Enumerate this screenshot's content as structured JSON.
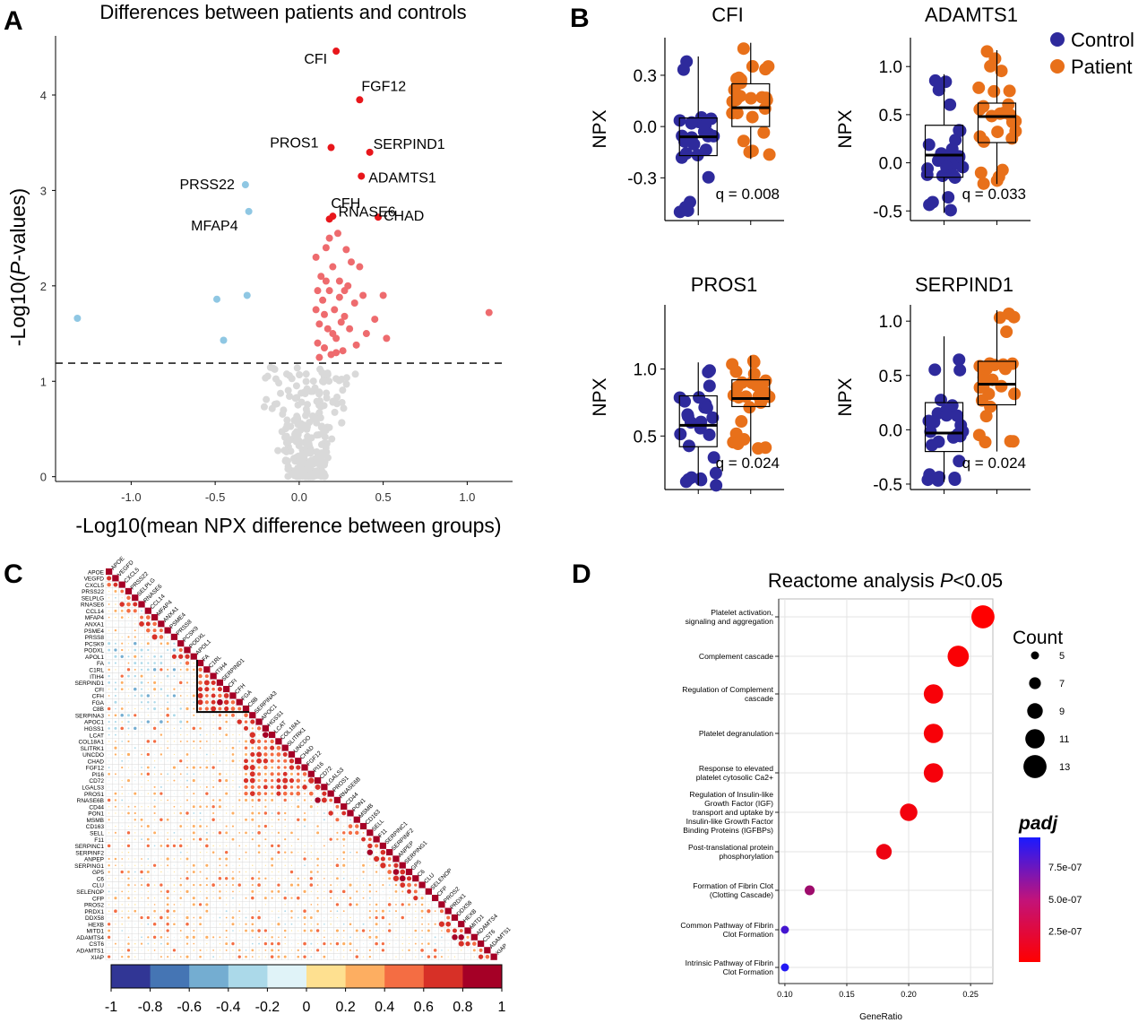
{
  "panels": {
    "a": "A",
    "b": "B",
    "c": "C",
    "d": "D"
  },
  "chart_data": [
    {
      "type": "scatter",
      "panel": "A",
      "title": "Differences between patients and controls",
      "xlabel": "-Log10(mean NPX difference between groups)",
      "ylabel_prefix": "-Log10(",
      "ylabel_italic": "P",
      "ylabel_suffix": "-values)",
      "xlim": [
        -1.45,
        1.27
      ],
      "ylim": [
        -0.05,
        4.62
      ],
      "xticks": [
        "-1.0",
        "-0.5",
        "0.0",
        "0.5",
        "1.0"
      ],
      "xtick_values": [
        -1.0,
        -0.5,
        0.0,
        0.5,
        1.0
      ],
      "yticks": [
        "0",
        "1",
        "2",
        "3",
        "4"
      ],
      "ytick_values": [
        0,
        1,
        2,
        3,
        4
      ],
      "threshold": 1.19,
      "colors": {
        "up": "#e8161b",
        "up_faded": "#ee6b6e",
        "down": "#8fc7e3",
        "ns": "#d9d9d9"
      },
      "labeled_points": [
        {
          "name": "CFI",
          "x": 0.22,
          "y": 4.46,
          "group": "up"
        },
        {
          "name": "FGF12",
          "x": 0.36,
          "y": 3.95,
          "group": "up"
        },
        {
          "name": "PROS1",
          "x": 0.19,
          "y": 3.45,
          "group": "up"
        },
        {
          "name": "SERPIND1",
          "x": 0.42,
          "y": 3.4,
          "group": "up"
        },
        {
          "name": "ADAMTS1",
          "x": 0.37,
          "y": 3.15,
          "group": "up"
        },
        {
          "name": "CFH",
          "x": 0.2,
          "y": 2.73,
          "group": "up"
        },
        {
          "name": "CHAD",
          "x": 0.47,
          "y": 2.72,
          "group": "up"
        },
        {
          "name": "PRSS22",
          "x": -0.32,
          "y": 3.06,
          "group": "down"
        },
        {
          "name": "RNASE6",
          "x": 0.18,
          "y": 2.7,
          "group": "up"
        },
        {
          "name": "MFAP4",
          "x": -0.3,
          "y": 2.78,
          "group": "down"
        }
      ],
      "points": [
        {
          "x": -1.32,
          "y": 1.66,
          "group": "down"
        },
        {
          "x": -0.49,
          "y": 1.86,
          "group": "down"
        },
        {
          "x": -0.45,
          "y": 1.43,
          "group": "down"
        },
        {
          "x": -0.31,
          "y": 1.9,
          "group": "down"
        },
        {
          "x": 1.13,
          "y": 1.72,
          "group": "up_faded"
        },
        {
          "x": 0.52,
          "y": 1.45,
          "group": "up_faded"
        },
        {
          "x": 0.5,
          "y": 1.9,
          "group": "up_faded"
        },
        {
          "x": 0.45,
          "y": 1.65,
          "group": "up_faded"
        },
        {
          "x": 0.38,
          "y": 1.9,
          "group": "up_faded"
        },
        {
          "x": 0.36,
          "y": 2.2,
          "group": "up_faded"
        },
        {
          "x": 0.33,
          "y": 1.82,
          "group": "up_faded"
        },
        {
          "x": 0.31,
          "y": 2.25,
          "group": "up_faded"
        },
        {
          "x": 0.3,
          "y": 1.55,
          "group": "up_faded"
        },
        {
          "x": 0.28,
          "y": 2.38,
          "group": "up_faded"
        },
        {
          "x": 0.27,
          "y": 1.95,
          "group": "up_faded"
        },
        {
          "x": 0.26,
          "y": 1.32,
          "group": "up_faded"
        },
        {
          "x": 0.25,
          "y": 1.62,
          "group": "up_faded"
        },
        {
          "x": 0.24,
          "y": 2.05,
          "group": "up_faded"
        },
        {
          "x": 0.23,
          "y": 2.55,
          "group": "up_faded"
        },
        {
          "x": 0.22,
          "y": 1.45,
          "group": "up_faded"
        },
        {
          "x": 0.21,
          "y": 1.75,
          "group": "up_faded"
        },
        {
          "x": 0.2,
          "y": 2.2,
          "group": "up_faded"
        },
        {
          "x": 0.19,
          "y": 1.28,
          "group": "up_faded"
        },
        {
          "x": 0.18,
          "y": 1.95,
          "group": "up_faded"
        },
        {
          "x": 0.17,
          "y": 1.55,
          "group": "up_faded"
        },
        {
          "x": 0.16,
          "y": 2.4,
          "group": "up_faded"
        },
        {
          "x": 0.15,
          "y": 1.35,
          "group": "up_faded"
        },
        {
          "x": 0.14,
          "y": 1.85,
          "group": "up_faded"
        },
        {
          "x": 0.13,
          "y": 2.1,
          "group": "up_faded"
        },
        {
          "x": 0.12,
          "y": 1.6,
          "group": "up_faded"
        },
        {
          "x": 0.11,
          "y": 1.4,
          "group": "up_faded"
        },
        {
          "x": 0.1,
          "y": 2.3,
          "group": "up_faded"
        },
        {
          "x": 0.1,
          "y": 1.75,
          "group": "up_faded"
        },
        {
          "x": 0.12,
          "y": 1.25,
          "group": "up_faded"
        },
        {
          "x": 0.16,
          "y": 2.05,
          "group": "up_faded"
        },
        {
          "x": 0.22,
          "y": 1.3,
          "group": "up_faded"
        },
        {
          "x": 0.27,
          "y": 1.68,
          "group": "up_faded"
        },
        {
          "x": 0.29,
          "y": 2.0,
          "group": "up_faded"
        },
        {
          "x": 0.34,
          "y": 1.38,
          "group": "up_faded"
        },
        {
          "x": 0.2,
          "y": 1.5,
          "group": "up_faded"
        },
        {
          "x": 0.15,
          "y": 1.7,
          "group": "up_faded"
        },
        {
          "x": 0.24,
          "y": 1.88,
          "group": "up_faded"
        },
        {
          "x": 0.18,
          "y": 2.5,
          "group": "up_faded"
        },
        {
          "x": 0.4,
          "y": 1.5,
          "group": "up_faded"
        },
        {
          "x": 0.11,
          "y": 1.95,
          "group": "up_faded"
        }
      ],
      "ns_count": 260,
      "ns_x_center": 0.05,
      "ns_x_spread": 0.14,
      "ns_y_max": 1.15
    },
    {
      "type": "box",
      "panel": "B",
      "legend": [
        {
          "name": "Control",
          "color": "#2e2a9c"
        },
        {
          "name": "Patient",
          "color": "#e8701a"
        }
      ],
      "ylabel": "NPX",
      "plots": [
        {
          "title": "CFI",
          "q": "q = 0.008",
          "ylim": [
            -0.55,
            0.52
          ],
          "yticks": [
            "-0.3",
            "0.0",
            "0.3"
          ],
          "ytick_values": [
            -0.3,
            0.0,
            0.3
          ],
          "control": {
            "whislo": -0.52,
            "q1": -0.17,
            "med": -0.06,
            "q3": 0.05,
            "whishi": 0.41
          },
          "patient": {
            "whislo": -0.19,
            "q1": 0.0,
            "med": 0.11,
            "q3": 0.25,
            "whishi": 0.49
          }
        },
        {
          "title": "ADAMTS1",
          "q": "q = 0.033",
          "ylim": [
            -0.6,
            1.3
          ],
          "yticks": [
            "-0.5",
            "0.0",
            "0.5",
            "1.0"
          ],
          "ytick_values": [
            -0.5,
            0.0,
            0.5,
            1.0
          ],
          "control": {
            "whislo": -0.52,
            "q1": -0.15,
            "med": 0.08,
            "q3": 0.39,
            "whishi": 0.92
          },
          "patient": {
            "whislo": -0.22,
            "q1": 0.21,
            "med": 0.48,
            "q3": 0.62,
            "whishi": 1.17
          }
        },
        {
          "title": "PROS1",
          "q": "q = 0.024",
          "ylim": [
            0.1,
            1.48
          ],
          "yticks": [
            "0.5",
            "1.0"
          ],
          "ytick_values": [
            0.5,
            1.0
          ],
          "control": {
            "whislo": 0.13,
            "q1": 0.42,
            "med": 0.58,
            "q3": 0.8,
            "whishi": 1.05
          },
          "patient": {
            "whislo": 0.35,
            "q1": 0.72,
            "med": 0.78,
            "q3": 0.92,
            "whishi": 1.1
          }
        },
        {
          "title": "SERPIND1",
          "q": "q = 0.024",
          "ylim": [
            -0.55,
            1.15
          ],
          "yticks": [
            "-0.5",
            "0.0",
            "0.5",
            "1.0"
          ],
          "ytick_values": [
            -0.5,
            0.0,
            0.5,
            1.0
          ],
          "control": {
            "whislo": -0.48,
            "q1": -0.2,
            "med": -0.03,
            "q3": 0.25,
            "whishi": 0.86
          },
          "patient": {
            "whislo": -0.2,
            "q1": 0.23,
            "med": 0.42,
            "q3": 0.63,
            "whishi": 1.1
          }
        }
      ]
    },
    {
      "type": "heatmap",
      "panel": "C",
      "labels": [
        "APOE",
        "VEGFD",
        "CXCL5",
        "PRSS22",
        "SELPLG",
        "RNASE6",
        "CCL14",
        "MFAP4",
        "ANXA1",
        "PSME4",
        "PRSS8",
        "PCSK9",
        "PODXL",
        "APOL1",
        "FA",
        "C1RL",
        "ITIH4",
        "SERPIND1",
        "CFI",
        "CFH",
        "FGA",
        "C8B",
        "SERPINA3",
        "APOC1",
        "HGSS1",
        "LCAT",
        "COL18A1",
        "SLITRK1",
        "UNCDO",
        "CHAD",
        "FGF12",
        "PI16",
        "CD72",
        "LGALS3",
        "PROS1",
        "RNASE6B",
        "CD44",
        "PON1",
        "MSMB",
        "CD163",
        "SELL",
        "F11",
        "SERPINC1",
        "SERPINF2",
        "ANPEP",
        "SERPING1",
        "GP5",
        "C6",
        "CLU",
        "SELENOP",
        "CFP",
        "PROS2",
        "PRDX1",
        "DDX58",
        "HEXB",
        "MITD1",
        "ADAMTS4",
        "CST6",
        "ADAMTS1",
        "XIAP"
      ],
      "colorbar_ticks": [
        "-1",
        "-0.8",
        "-0.6",
        "-0.4",
        "-0.2",
        "0",
        "0.2",
        "0.4",
        "0.6",
        "0.8",
        "1"
      ],
      "colorbar_values": [
        -1,
        -0.8,
        -0.6,
        -0.4,
        -0.2,
        0,
        0.2,
        0.4,
        0.6,
        0.8,
        1
      ],
      "colorbar_colors": [
        "#313695",
        "#4575b4",
        "#74add1",
        "#abd9e9",
        "#e0f3f8",
        "#fee090",
        "#fdae61",
        "#f46d43",
        "#d73027",
        "#a50026"
      ],
      "highlight_block": [
        "FA",
        "C8B"
      ]
    },
    {
      "type": "scatter",
      "panel": "D",
      "title_prefix": "Reactome analysis ",
      "title_italic": "P",
      "title_suffix": "<0.05",
      "xlabel": "GeneRatio",
      "xlim": [
        0.095,
        0.268
      ],
      "xticks": [
        "0.10",
        "0.15",
        "0.20",
        "0.25"
      ],
      "xtick_values": [
        0.1,
        0.15,
        0.2,
        0.25
      ],
      "terms": [
        {
          "label": [
            "Platelet activation,",
            "signaling and aggregation"
          ],
          "x": 0.26,
          "count": 13,
          "padj": 1e-08
        },
        {
          "label": [
            "Complement cascade"
          ],
          "x": 0.24,
          "count": 12,
          "padj": 3e-08
        },
        {
          "label": [
            "Regulation of Complement",
            "cascade"
          ],
          "x": 0.22,
          "count": 11,
          "padj": 4e-08
        },
        {
          "label": [
            "Platelet  degranulation"
          ],
          "x": 0.22,
          "count": 11,
          "padj": 4e-08
        },
        {
          "label": [
            "Response to elevated",
            "platelet cytosolic Ca2+"
          ],
          "x": 0.22,
          "count": 11,
          "padj": 5e-08
        },
        {
          "label": [
            "Regulation of Insulin-like",
            "Growth Factor (IGF)",
            "transport and uptake by",
            "Insulin-like Growth Factor",
            "Binding Proteins (IGFBPs)"
          ],
          "x": 0.2,
          "count": 10,
          "padj": 6e-08
        },
        {
          "label": [
            "Post-translational protein",
            "phosphorylation"
          ],
          "x": 0.18,
          "count": 9,
          "padj": 8e-08
        },
        {
          "label": [
            "Formation of Fibrin Clot",
            "(Clotting Cascade)"
          ],
          "x": 0.12,
          "count": 6,
          "padj": 4.2e-07
        },
        {
          "label": [
            "Common Pathway of Fibrin",
            "Clot Formation"
          ],
          "x": 0.1,
          "count": 5,
          "padj": 8e-07
        },
        {
          "label": [
            "Intrinsic Pathway of Fibrin",
            "Clot Formation"
          ],
          "x": 0.1,
          "count": 5,
          "padj": 9.4e-07
        }
      ],
      "size_legend_title": "Count",
      "size_legend": [
        "5",
        "7",
        "9",
        "11",
        "13"
      ],
      "size_legend_values": [
        5,
        7,
        9,
        11,
        13
      ],
      "color_legend_title": "padj",
      "color_legend_ticks": [
        "7.5e-07",
        "5.0e-07",
        "2.5e-07"
      ],
      "color_legend_values": [
        7.5e-07,
        5e-07,
        2.5e-07
      ],
      "padj_range": [
        1e-08,
        9.8e-07
      ],
      "colors": {
        "low": "#ff0000",
        "high": "#1a1aff"
      }
    }
  ]
}
